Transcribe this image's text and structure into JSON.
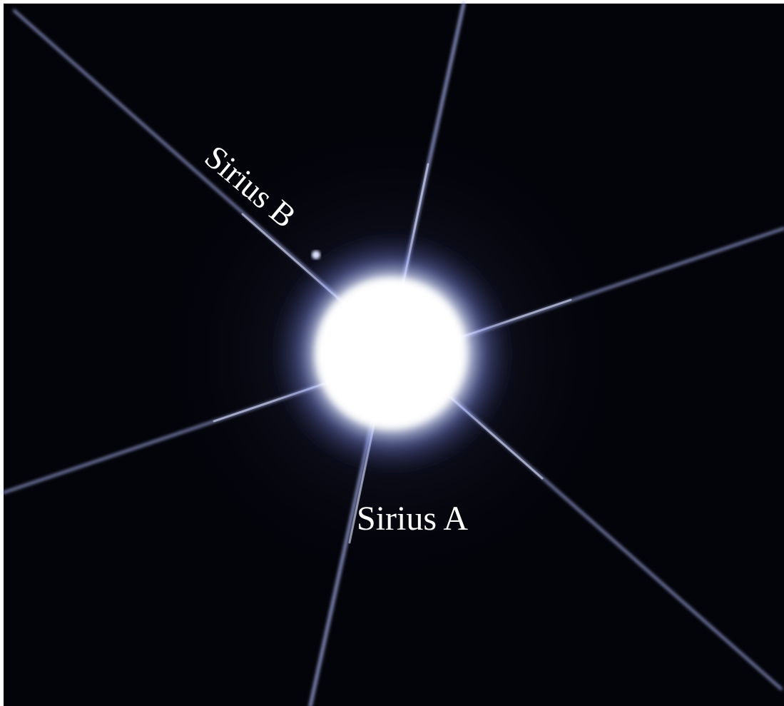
{
  "labels": {
    "sirius_b": "Sirius B",
    "sirius_a": "Sirius A"
  }
}
